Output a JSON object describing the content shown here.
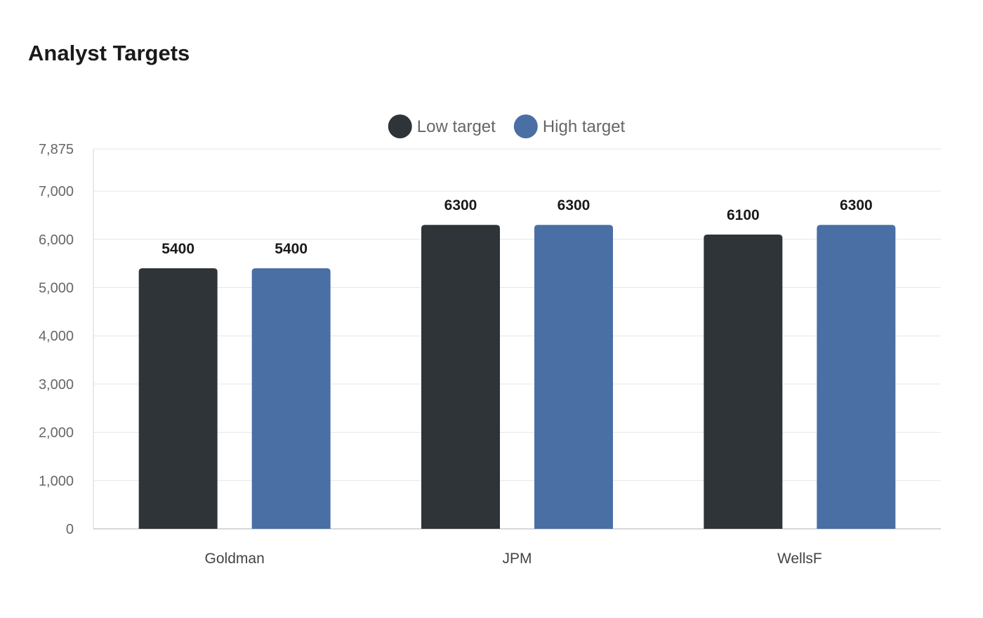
{
  "title": "Analyst Targets",
  "chart_data": {
    "type": "bar",
    "title": "Analyst Targets",
    "categories": [
      "Goldman",
      "JPM",
      "WellsF"
    ],
    "series": [
      {
        "name": "Low target",
        "values": [
          5400,
          6300,
          6100
        ],
        "color": "#2e3437"
      },
      {
        "name": "High target",
        "values": [
          5400,
          6300,
          6300
        ],
        "color": "#4a6fa5"
      }
    ],
    "ylim": [
      0,
      7875
    ],
    "yticks": [
      0,
      1000,
      2000,
      3000,
      4000,
      5000,
      6000,
      7000,
      7875
    ],
    "ytick_labels": [
      "0",
      "1,000",
      "2,000",
      "3,000",
      "4,000",
      "5,000",
      "6,000",
      "7,000",
      "7,875"
    ],
    "xlabel": "",
    "ylabel": "",
    "grid": true,
    "legend_position": "top-center",
    "data_labels": true
  }
}
